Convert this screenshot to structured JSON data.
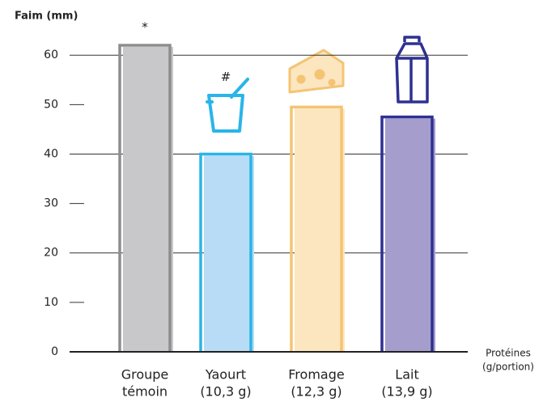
{
  "chart_data": {
    "type": "bar",
    "y_label": "Faim (mm)",
    "x_label": [
      "Protéines",
      "(g/portion)"
    ],
    "categories": [
      [
        "Groupe",
        "témoin"
      ],
      [
        "Yaourt",
        "(10,3 g)"
      ],
      [
        "Fromage",
        "(12,3 g)"
      ],
      [
        "Lait",
        "(13,9 g)"
      ]
    ],
    "values": [
      62,
      40,
      49.5,
      47.5
    ],
    "colors": [
      "#c8c8ca",
      "#b8dcf5",
      "#fbe6c0",
      "#a59dcc"
    ],
    "edge_colors": [
      "#8d8d8f",
      "#29b5e8",
      "#f4c472",
      "#2e3192"
    ],
    "annotations": [
      "*",
      "#",
      null,
      null
    ],
    "ylim": [
      0,
      62
    ],
    "yticks": [
      0,
      10,
      20,
      30,
      40,
      50,
      60
    ],
    "grid": true
  }
}
